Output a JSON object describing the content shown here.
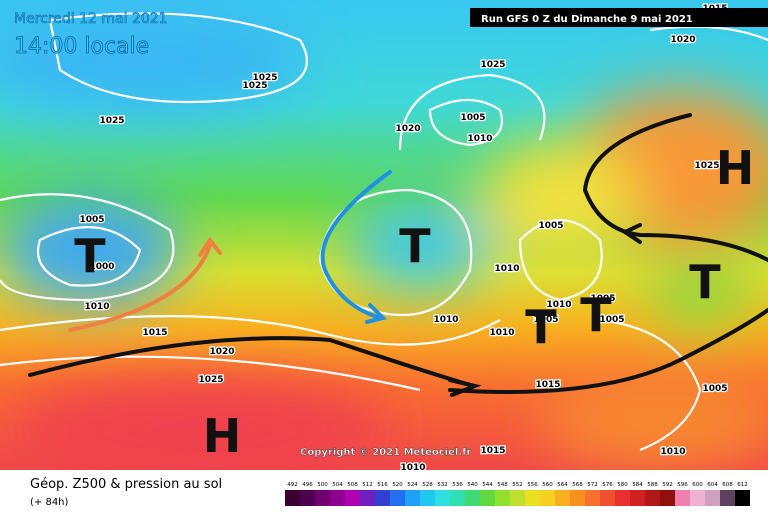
{
  "header": {
    "valid_date": "Mercredi 12 mai 2021",
    "local_time": "14:00 locale",
    "run": "Run GFS 0 Z du Dimanche 9 mai 2021"
  },
  "map": {
    "isobar_labels": [
      "1015",
      "1025",
      "1025",
      "1025",
      "1025",
      "1020",
      "1020",
      "1005",
      "1010",
      "1025",
      "1005",
      "1000",
      "1010",
      "1015",
      "1020",
      "1025",
      "1005",
      "1010",
      "1010",
      "1010",
      "1010",
      "1005",
      "1005",
      "1005",
      "1015",
      "1005",
      "1010",
      "1015",
      "1010"
    ],
    "systems": [
      "T",
      "T",
      "T",
      "T",
      "T",
      "H",
      "H"
    ],
    "copyright": "Copyright © 2021 Meteociel.fr"
  },
  "legend": {
    "title": "Géop. Z500 & pression au sol",
    "lead_time": "(+ 84h)",
    "scale": [
      492,
      496,
      500,
      504,
      508,
      512,
      516,
      520,
      524,
      528,
      532,
      536,
      540,
      544,
      548,
      552,
      556,
      560,
      564,
      568,
      572,
      576,
      580,
      584,
      588,
      592,
      596,
      600,
      604,
      608,
      612
    ]
  }
}
